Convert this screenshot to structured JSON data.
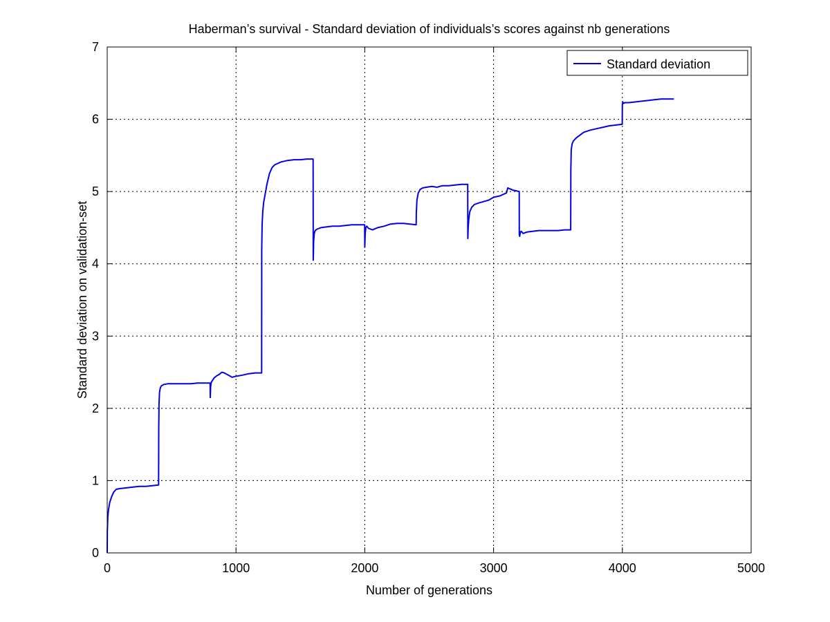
{
  "chart_data": {
    "type": "line",
    "title": "Haberman’s survival - Standard deviation of individuals’s scores against nb generations",
    "xlabel": "Number of generations",
    "ylabel": "Standard deviation on validation-set",
    "xlim": [
      0,
      5000
    ],
    "ylim": [
      0,
      7
    ],
    "xticks": [
      0,
      1000,
      2000,
      3000,
      4000,
      5000
    ],
    "yticks": [
      0,
      1,
      2,
      3,
      4,
      5,
      6,
      7
    ],
    "xtick_labels": [
      "0",
      "1000",
      "2000",
      "3000",
      "4000",
      "5000"
    ],
    "ytick_labels": [
      "0",
      "1",
      "2",
      "3",
      "4",
      "5",
      "6",
      "7"
    ],
    "grid": true,
    "legend": {
      "position": "top-right",
      "entries": [
        "Standard deviation"
      ]
    },
    "series": [
      {
        "name": "Standard deviation",
        "color": "#0000ee",
        "x": [
          0,
          1,
          5,
          10,
          20,
          35,
          50,
          70,
          100,
          150,
          200,
          250,
          300,
          350,
          399,
          400,
          402,
          406,
          412,
          420,
          440,
          470,
          500,
          550,
          600,
          650,
          700,
          750,
          799,
          800,
          803,
          808,
          815,
          830,
          850,
          870,
          890,
          910,
          930,
          950,
          970,
          990,
          1050,
          1100,
          1150,
          1199,
          1200,
          1203,
          1208,
          1215,
          1225,
          1240,
          1260,
          1280,
          1300,
          1350,
          1400,
          1450,
          1500,
          1550,
          1599,
          1600,
          1603,
          1608,
          1615,
          1630,
          1660,
          1700,
          1750,
          1800,
          1850,
          1900,
          1950,
          1999,
          2000,
          2003,
          2008,
          2015,
          2030,
          2060,
          2100,
          2150,
          2200,
          2250,
          2300,
          2350,
          2399,
          2400,
          2405,
          2415,
          2430,
          2450,
          2480,
          2520,
          2560,
          2600,
          2650,
          2700,
          2750,
          2799,
          2800,
          2803,
          2808,
          2815,
          2830,
          2850,
          2880,
          2920,
          2960,
          3000,
          3050,
          3100,
          3110,
          3150,
          3199,
          3200,
          3203,
          3208,
          3215,
          3230,
          3260,
          3300,
          3350,
          3400,
          3450,
          3500,
          3550,
          3599,
          3600,
          3603,
          3610,
          3620,
          3640,
          3670,
          3700,
          3750,
          3800,
          3850,
          3900,
          3950,
          3999,
          4000,
          4003,
          4010,
          4020,
          4050,
          4100,
          4150,
          4200,
          4250,
          4300,
          4350,
          4400
        ],
        "y": [
          0,
          0.3,
          0.5,
          0.6,
          0.7,
          0.78,
          0.84,
          0.88,
          0.89,
          0.9,
          0.91,
          0.92,
          0.92,
          0.93,
          0.94,
          1.7,
          2.05,
          2.22,
          2.28,
          2.31,
          2.33,
          2.34,
          2.34,
          2.34,
          2.34,
          2.34,
          2.35,
          2.35,
          2.35,
          2.15,
          2.3,
          2.36,
          2.38,
          2.42,
          2.45,
          2.47,
          2.5,
          2.49,
          2.47,
          2.45,
          2.43,
          2.44,
          2.46,
          2.48,
          2.49,
          2.49,
          4.2,
          4.55,
          4.72,
          4.85,
          4.95,
          5.1,
          5.25,
          5.33,
          5.37,
          5.41,
          5.43,
          5.44,
          5.44,
          5.45,
          5.45,
          4.05,
          4.32,
          4.42,
          4.46,
          4.48,
          4.5,
          4.51,
          4.52,
          4.52,
          4.53,
          4.54,
          4.54,
          4.54,
          4.23,
          4.42,
          4.5,
          4.52,
          4.49,
          4.47,
          4.5,
          4.52,
          4.55,
          4.56,
          4.56,
          4.55,
          4.54,
          4.7,
          4.88,
          4.98,
          5.03,
          5.05,
          5.06,
          5.07,
          5.06,
          5.08,
          5.08,
          5.09,
          5.1,
          5.1,
          4.35,
          4.5,
          4.62,
          4.72,
          4.78,
          4.82,
          4.84,
          4.86,
          4.88,
          4.92,
          4.94,
          4.98,
          5.05,
          5.02,
          5.0,
          4.4,
          4.38,
          4.44,
          4.45,
          4.42,
          4.44,
          4.45,
          4.46,
          4.46,
          4.46,
          4.46,
          4.47,
          4.47,
          5.3,
          5.58,
          5.66,
          5.7,
          5.74,
          5.78,
          5.82,
          5.85,
          5.87,
          5.89,
          5.91,
          5.92,
          5.93,
          6.2,
          6.24,
          6.22,
          6.23,
          6.23,
          6.24,
          6.25,
          6.26,
          6.27,
          6.28,
          6.28,
          6.28
        ]
      }
    ]
  }
}
